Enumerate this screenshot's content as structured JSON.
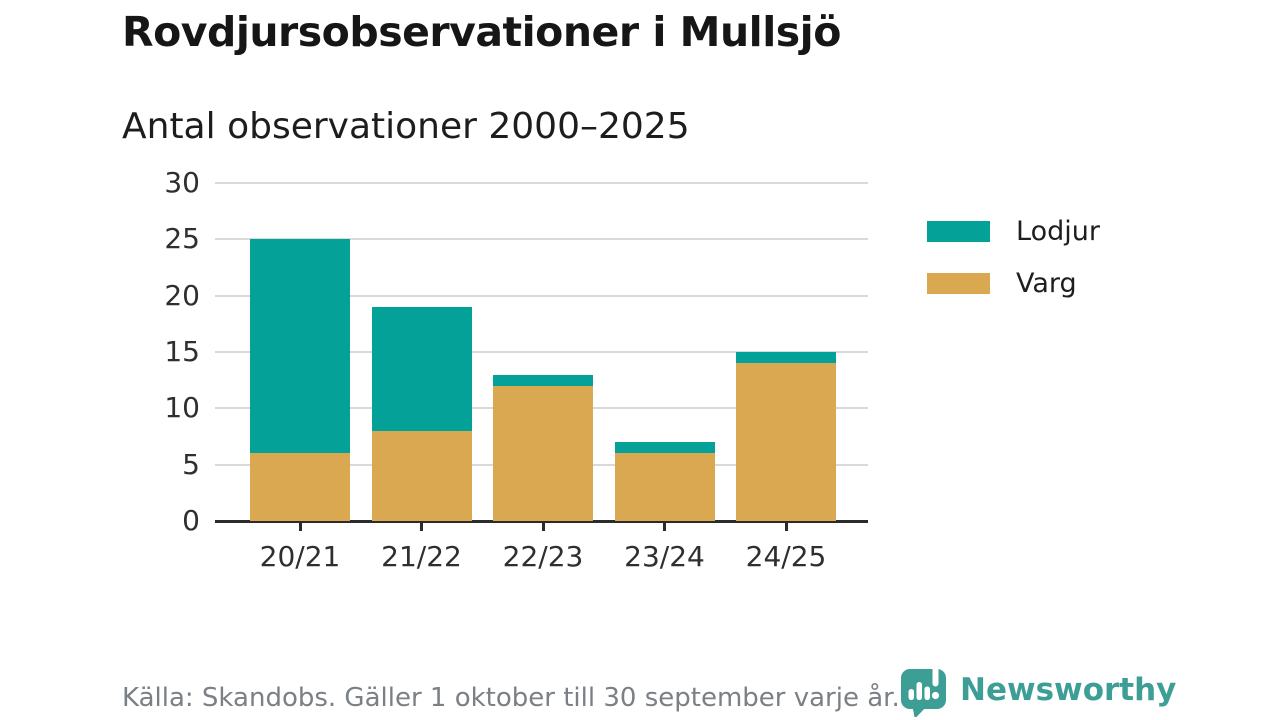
{
  "header": {
    "title": "Rovdjursobservationer i Mullsjö",
    "subtitle": "Antal observationer 2000–2025"
  },
  "colors": {
    "lodjur": "#04a199",
    "varg": "#d9a850",
    "axis": "#2b2b2b",
    "gridline": "#d9d9d9",
    "tick_label": "#2f2f2f",
    "footer_text": "#7b8086",
    "brand_teal": "#3d9e96"
  },
  "chart_data": {
    "type": "bar",
    "stacked": true,
    "title": "Rovdjursobservationer i Mullsjö",
    "subtitle": "Antal observationer 2000–2025",
    "categories": [
      "20/21",
      "21/22",
      "22/23",
      "23/24",
      "24/25"
    ],
    "series": [
      {
        "name": "Varg",
        "color_key": "varg",
        "values": [
          6,
          8,
          12,
          6,
          14
        ]
      },
      {
        "name": "Lodjur",
        "color_key": "lodjur",
        "values": [
          19,
          11,
          1,
          1,
          1
        ]
      }
    ],
    "totals": [
      25,
      19,
      13,
      7,
      15
    ],
    "xlabel": "",
    "ylabel": "",
    "ylim": [
      0,
      30
    ],
    "yticks": [
      0,
      5,
      10,
      15,
      20,
      25,
      30
    ],
    "grid": "horizontal",
    "legend_position": "right"
  },
  "legend": {
    "items": [
      {
        "label": "Lodjur",
        "color_key": "lodjur"
      },
      {
        "label": "Varg",
        "color_key": "varg"
      }
    ]
  },
  "footer": {
    "source": "Källa: Skandobs. Gäller 1 oktober till 30 september varje år.",
    "brand_name": "Newsworthy"
  }
}
